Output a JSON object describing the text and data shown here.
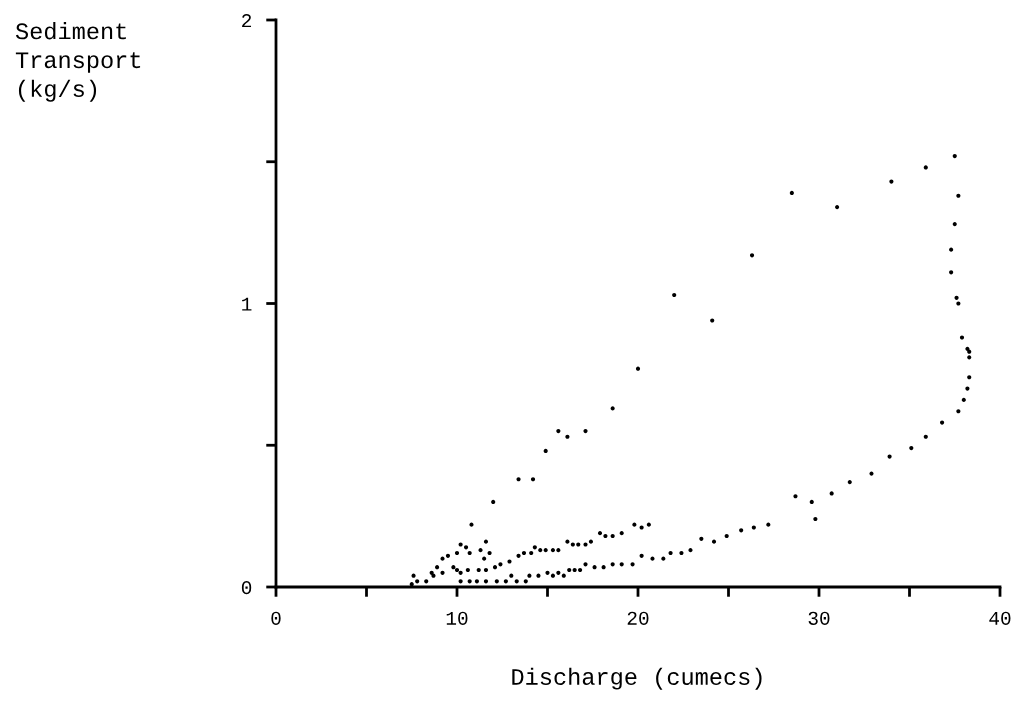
{
  "chart_data": {
    "type": "scatter",
    "xlabel": "Discharge (cumecs)",
    "ylabel": "Sediment\nTransport\n(kg/s)",
    "xlim": [
      0,
      40
    ],
    "ylim": [
      0,
      2
    ],
    "xticks": [
      0,
      {
        "value": 5,
        "label": null
      },
      10,
      {
        "value": 15,
        "label": null
      },
      20,
      {
        "value": 25,
        "label": null
      },
      30,
      {
        "value": 35,
        "label": null
      },
      40
    ],
    "yticks": [
      0,
      {
        "value": 0.5,
        "label": null
      },
      1,
      {
        "value": 1.5,
        "label": null
      },
      2
    ],
    "grid": false,
    "legend": false,
    "marker": "circle",
    "series": [
      {
        "color": "#000000",
        "x": [
          10.8,
          12.0,
          13.4,
          14.2,
          14.9,
          15.6,
          16.1,
          17.1,
          18.6,
          20.0,
          22.0,
          24.1,
          26.3,
          28.5,
          31.0,
          34.0,
          35.9,
          37.5,
          37.7,
          37.5,
          37.3,
          37.3,
          37.6,
          37.7,
          37.9,
          38.2,
          38.3,
          38.3,
          38.3,
          38.2,
          38.0,
          37.7,
          36.8,
          35.9,
          35.1,
          33.9,
          32.9,
          31.7,
          30.7,
          28.7,
          29.6,
          29.8,
          27.2,
          26.4,
          25.7,
          24.9,
          24.2,
          23.5,
          22.9,
          22.4,
          21.8,
          21.4,
          20.8,
          20.2,
          19.7,
          19.1,
          18.6,
          18.1,
          17.6,
          17.1,
          16.8,
          16.5,
          16.2,
          15.9,
          15.6,
          15.3,
          15.0,
          14.5,
          14.0,
          13.8,
          13.3,
          13.0,
          20.6,
          20.2,
          19.8,
          19.1,
          18.6,
          18.2,
          17.9,
          17.4,
          17.1,
          16.7,
          16.4,
          16.1,
          15.6,
          15.3,
          14.9,
          14.6,
          14.3,
          14.1,
          13.7,
          13.4,
          12.9,
          12.4,
          12.1,
          11.6,
          11.2,
          10.6,
          10.2,
          10.2,
          10.5,
          10.0,
          9.5,
          9.2,
          8.9,
          8.6,
          11.3,
          11.6,
          11.8,
          10.7,
          11.5,
          9.8,
          9.2,
          7.6,
          7.8,
          8.3,
          8.7,
          10.0,
          10.2,
          10.7,
          11.1,
          11.6,
          12.2,
          12.7,
          7.5
        ],
        "values": [
          0.22,
          0.3,
          0.38,
          0.38,
          0.48,
          0.55,
          0.53,
          0.55,
          0.63,
          0.77,
          1.03,
          0.94,
          1.17,
          1.39,
          1.34,
          1.43,
          1.48,
          1.52,
          1.38,
          1.28,
          1.19,
          1.11,
          1.02,
          1.0,
          0.88,
          0.84,
          0.83,
          0.81,
          0.74,
          0.7,
          0.66,
          0.62,
          0.58,
          0.53,
          0.49,
          0.46,
          0.4,
          0.37,
          0.33,
          0.32,
          0.3,
          0.24,
          0.22,
          0.21,
          0.2,
          0.18,
          0.16,
          0.17,
          0.13,
          0.12,
          0.12,
          0.1,
          0.1,
          0.11,
          0.08,
          0.08,
          0.08,
          0.07,
          0.07,
          0.08,
          0.06,
          0.06,
          0.06,
          0.04,
          0.05,
          0.04,
          0.05,
          0.04,
          0.04,
          0.02,
          0.02,
          0.04,
          0.22,
          0.21,
          0.22,
          0.19,
          0.18,
          0.18,
          0.19,
          0.16,
          0.15,
          0.15,
          0.15,
          0.16,
          0.13,
          0.13,
          0.13,
          0.13,
          0.14,
          0.12,
          0.12,
          0.11,
          0.09,
          0.08,
          0.07,
          0.06,
          0.06,
          0.06,
          0.05,
          0.15,
          0.14,
          0.12,
          0.11,
          0.1,
          0.07,
          0.05,
          0.13,
          0.16,
          0.12,
          0.12,
          0.1,
          0.07,
          0.05,
          0.04,
          0.02,
          0.02,
          0.04,
          0.06,
          0.02,
          0.02,
          0.02,
          0.02,
          0.02,
          0.02,
          0.01
        ]
      }
    ]
  }
}
